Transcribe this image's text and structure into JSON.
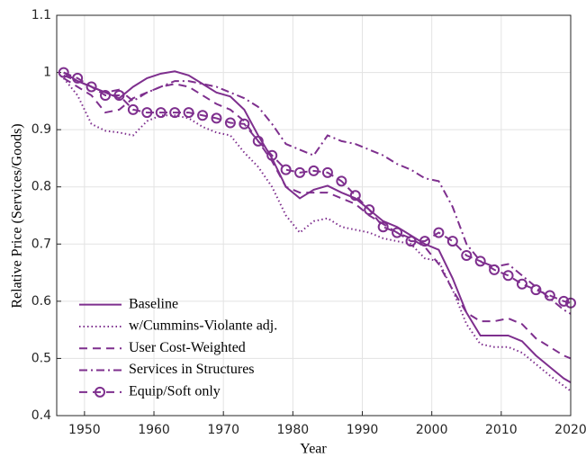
{
  "chart_data": {
    "type": "line",
    "xlabel": "Year",
    "ylabel": "Relative Price (Services/Goods)",
    "x": [
      1947,
      1949,
      1951,
      1953,
      1955,
      1957,
      1959,
      1961,
      1963,
      1965,
      1967,
      1969,
      1971,
      1973,
      1975,
      1977,
      1979,
      1981,
      1983,
      1985,
      1987,
      1989,
      1991,
      1993,
      1995,
      1997,
      1999,
      2001,
      2003,
      2005,
      2007,
      2009,
      2011,
      2013,
      2015,
      2017,
      2019,
      2020
    ],
    "series": [
      {
        "name": "Baseline",
        "color": "#7e2f8e",
        "dash": "solid",
        "values": [
          1.0,
          0.985,
          0.975,
          0.965,
          0.955,
          0.975,
          0.99,
          0.998,
          1.002,
          0.995,
          0.98,
          0.965,
          0.958,
          0.935,
          0.89,
          0.85,
          0.8,
          0.78,
          0.795,
          0.802,
          0.79,
          0.78,
          0.76,
          0.74,
          0.73,
          0.715,
          0.7,
          0.69,
          0.64,
          0.58,
          0.54,
          0.54,
          0.54,
          0.53,
          0.505,
          0.485,
          0.465,
          0.458
        ]
      },
      {
        "name": "w/Cummins-Violante adj.",
        "color": "#7e2f8e",
        "dash": "dotted",
        "values": [
          0.99,
          0.96,
          0.91,
          0.898,
          0.895,
          0.89,
          0.915,
          0.925,
          0.925,
          0.92,
          0.905,
          0.895,
          0.89,
          0.86,
          0.835,
          0.8,
          0.75,
          0.72,
          0.74,
          0.745,
          0.73,
          0.725,
          0.72,
          0.71,
          0.705,
          0.7,
          0.675,
          0.67,
          0.62,
          0.56,
          0.525,
          0.52,
          0.52,
          0.51,
          0.49,
          0.47,
          0.452,
          0.443
        ]
      },
      {
        "name": "User Cost-Weighted",
        "color": "#7e2f8e",
        "dash": "dashed",
        "values": [
          0.99,
          0.975,
          0.96,
          0.93,
          0.935,
          0.955,
          0.965,
          0.975,
          0.98,
          0.975,
          0.96,
          0.945,
          0.935,
          0.915,
          0.88,
          0.845,
          0.8,
          0.79,
          0.79,
          0.79,
          0.78,
          0.77,
          0.75,
          0.735,
          0.72,
          0.71,
          0.695,
          0.665,
          0.62,
          0.58,
          0.565,
          0.565,
          0.57,
          0.56,
          0.535,
          0.52,
          0.505,
          0.5
        ]
      },
      {
        "name": "Services in Structures",
        "color": "#7e2f8e",
        "dash": "dashdot",
        "values": [
          0.995,
          0.985,
          0.975,
          0.965,
          0.97,
          0.95,
          0.965,
          0.975,
          0.985,
          0.985,
          0.98,
          0.975,
          0.965,
          0.955,
          0.94,
          0.91,
          0.875,
          0.865,
          0.855,
          0.89,
          0.88,
          0.875,
          0.865,
          0.855,
          0.84,
          0.83,
          0.815,
          0.81,
          0.765,
          0.7,
          0.67,
          0.66,
          0.665,
          0.645,
          0.625,
          0.605,
          0.585,
          0.578
        ]
      },
      {
        "name": "Equip/Soft only",
        "color": "#7e2f8e",
        "dash": "dashed",
        "marker": "o",
        "values": [
          1.0,
          0.99,
          0.975,
          0.96,
          0.96,
          0.935,
          0.93,
          0.93,
          0.93,
          0.93,
          0.925,
          0.92,
          0.912,
          0.91,
          0.88,
          0.855,
          0.83,
          0.825,
          0.828,
          0.825,
          0.81,
          0.785,
          0.76,
          0.73,
          0.72,
          0.705,
          0.705,
          0.72,
          0.705,
          0.68,
          0.67,
          0.655,
          0.645,
          0.63,
          0.62,
          0.61,
          0.6,
          0.597
        ]
      }
    ],
    "xlim": [
      1946,
      2020
    ],
    "xticks": [
      1950,
      1960,
      1970,
      1980,
      1990,
      2000,
      2010,
      2020
    ],
    "ylim": [
      0.4,
      1.1
    ],
    "yticks": [
      0.4,
      0.5,
      0.6,
      0.7,
      0.8,
      0.9,
      1,
      1.1
    ],
    "grid": true,
    "legend": "lower left"
  }
}
